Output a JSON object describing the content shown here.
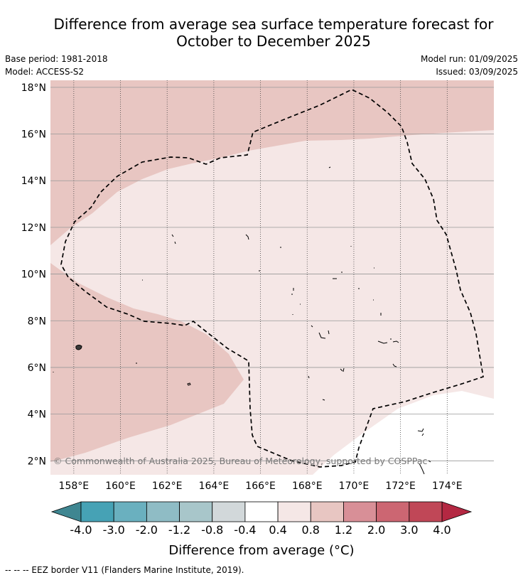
{
  "title_line1": "Difference from average sea surface temperature forecast for",
  "title_line2": "October to December 2025",
  "base_period": "Base period: 1981-2018",
  "model": "Model: ACCESS-S2",
  "model_run": "Model run: 01/09/2025",
  "issued": "Issued: 03/09/2025",
  "copyright": "© Commonwealth of Australia 2025, Bureau of Meteorology, supported by COSPPac",
  "footnote": "-- -- -- EEZ border V11 (Flanders Marine Institute, 2019).",
  "colors": {
    "anomaly_0.4_0.8": "#f5e7e6",
    "anomaly_0.8_1.2": "#e8c6c2",
    "anomaly_-0.4_0.4": "#ffffff"
  },
  "chart_data": {
    "type": "heatmap",
    "subtype": "filled-contour map",
    "xlim": [
      157,
      176
    ],
    "ylim": [
      1.4,
      18.3
    ],
    "x_ticks": [
      158,
      160,
      162,
      164,
      166,
      168,
      170,
      172,
      174
    ],
    "x_tick_labels": [
      "158°E",
      "160°E",
      "162°E",
      "164°E",
      "166°E",
      "168°E",
      "170°E",
      "172°E",
      "174°E"
    ],
    "y_ticks": [
      2,
      4,
      6,
      8,
      10,
      12,
      14,
      16,
      18
    ],
    "y_tick_labels": [
      "2°N",
      "4°N",
      "6°N",
      "8°N",
      "10°N",
      "12°N",
      "14°N",
      "16°N",
      "18°N"
    ],
    "grid": true,
    "regions": [
      {
        "anomaly_range": [
          0.8,
          1.2
        ],
        "location": "north band (above ~15-16°N)"
      },
      {
        "anomaly_range": [
          0.8,
          1.2
        ],
        "location": "western wedge (~2-10°N west of ~165.5°E)"
      },
      {
        "anomaly_range": [
          0.4,
          0.8
        ],
        "location": "central area"
      },
      {
        "anomaly_range": [
          -0.4,
          0.4
        ],
        "location": "south-east corner"
      }
    ],
    "colorbar": {
      "boundaries": [
        "-4.0",
        "-3.0",
        "-2.0",
        "-1.2",
        "-0.8",
        "-0.4",
        "0.4",
        "0.8",
        "1.2",
        "2.0",
        "3.0",
        "4.0"
      ],
      "colors": [
        "#46a2b5",
        "#6ab0bf",
        "#8fbcc5",
        "#a8c6ca",
        "#d2d8da",
        "#ffffff",
        "#f5e7e6",
        "#e8c6c2",
        "#d88f97",
        "#cc6672",
        "#c04757"
      ],
      "under_color": "#3f8691",
      "over_color": "#b42842",
      "label": "Difference from average (°C)"
    }
  }
}
